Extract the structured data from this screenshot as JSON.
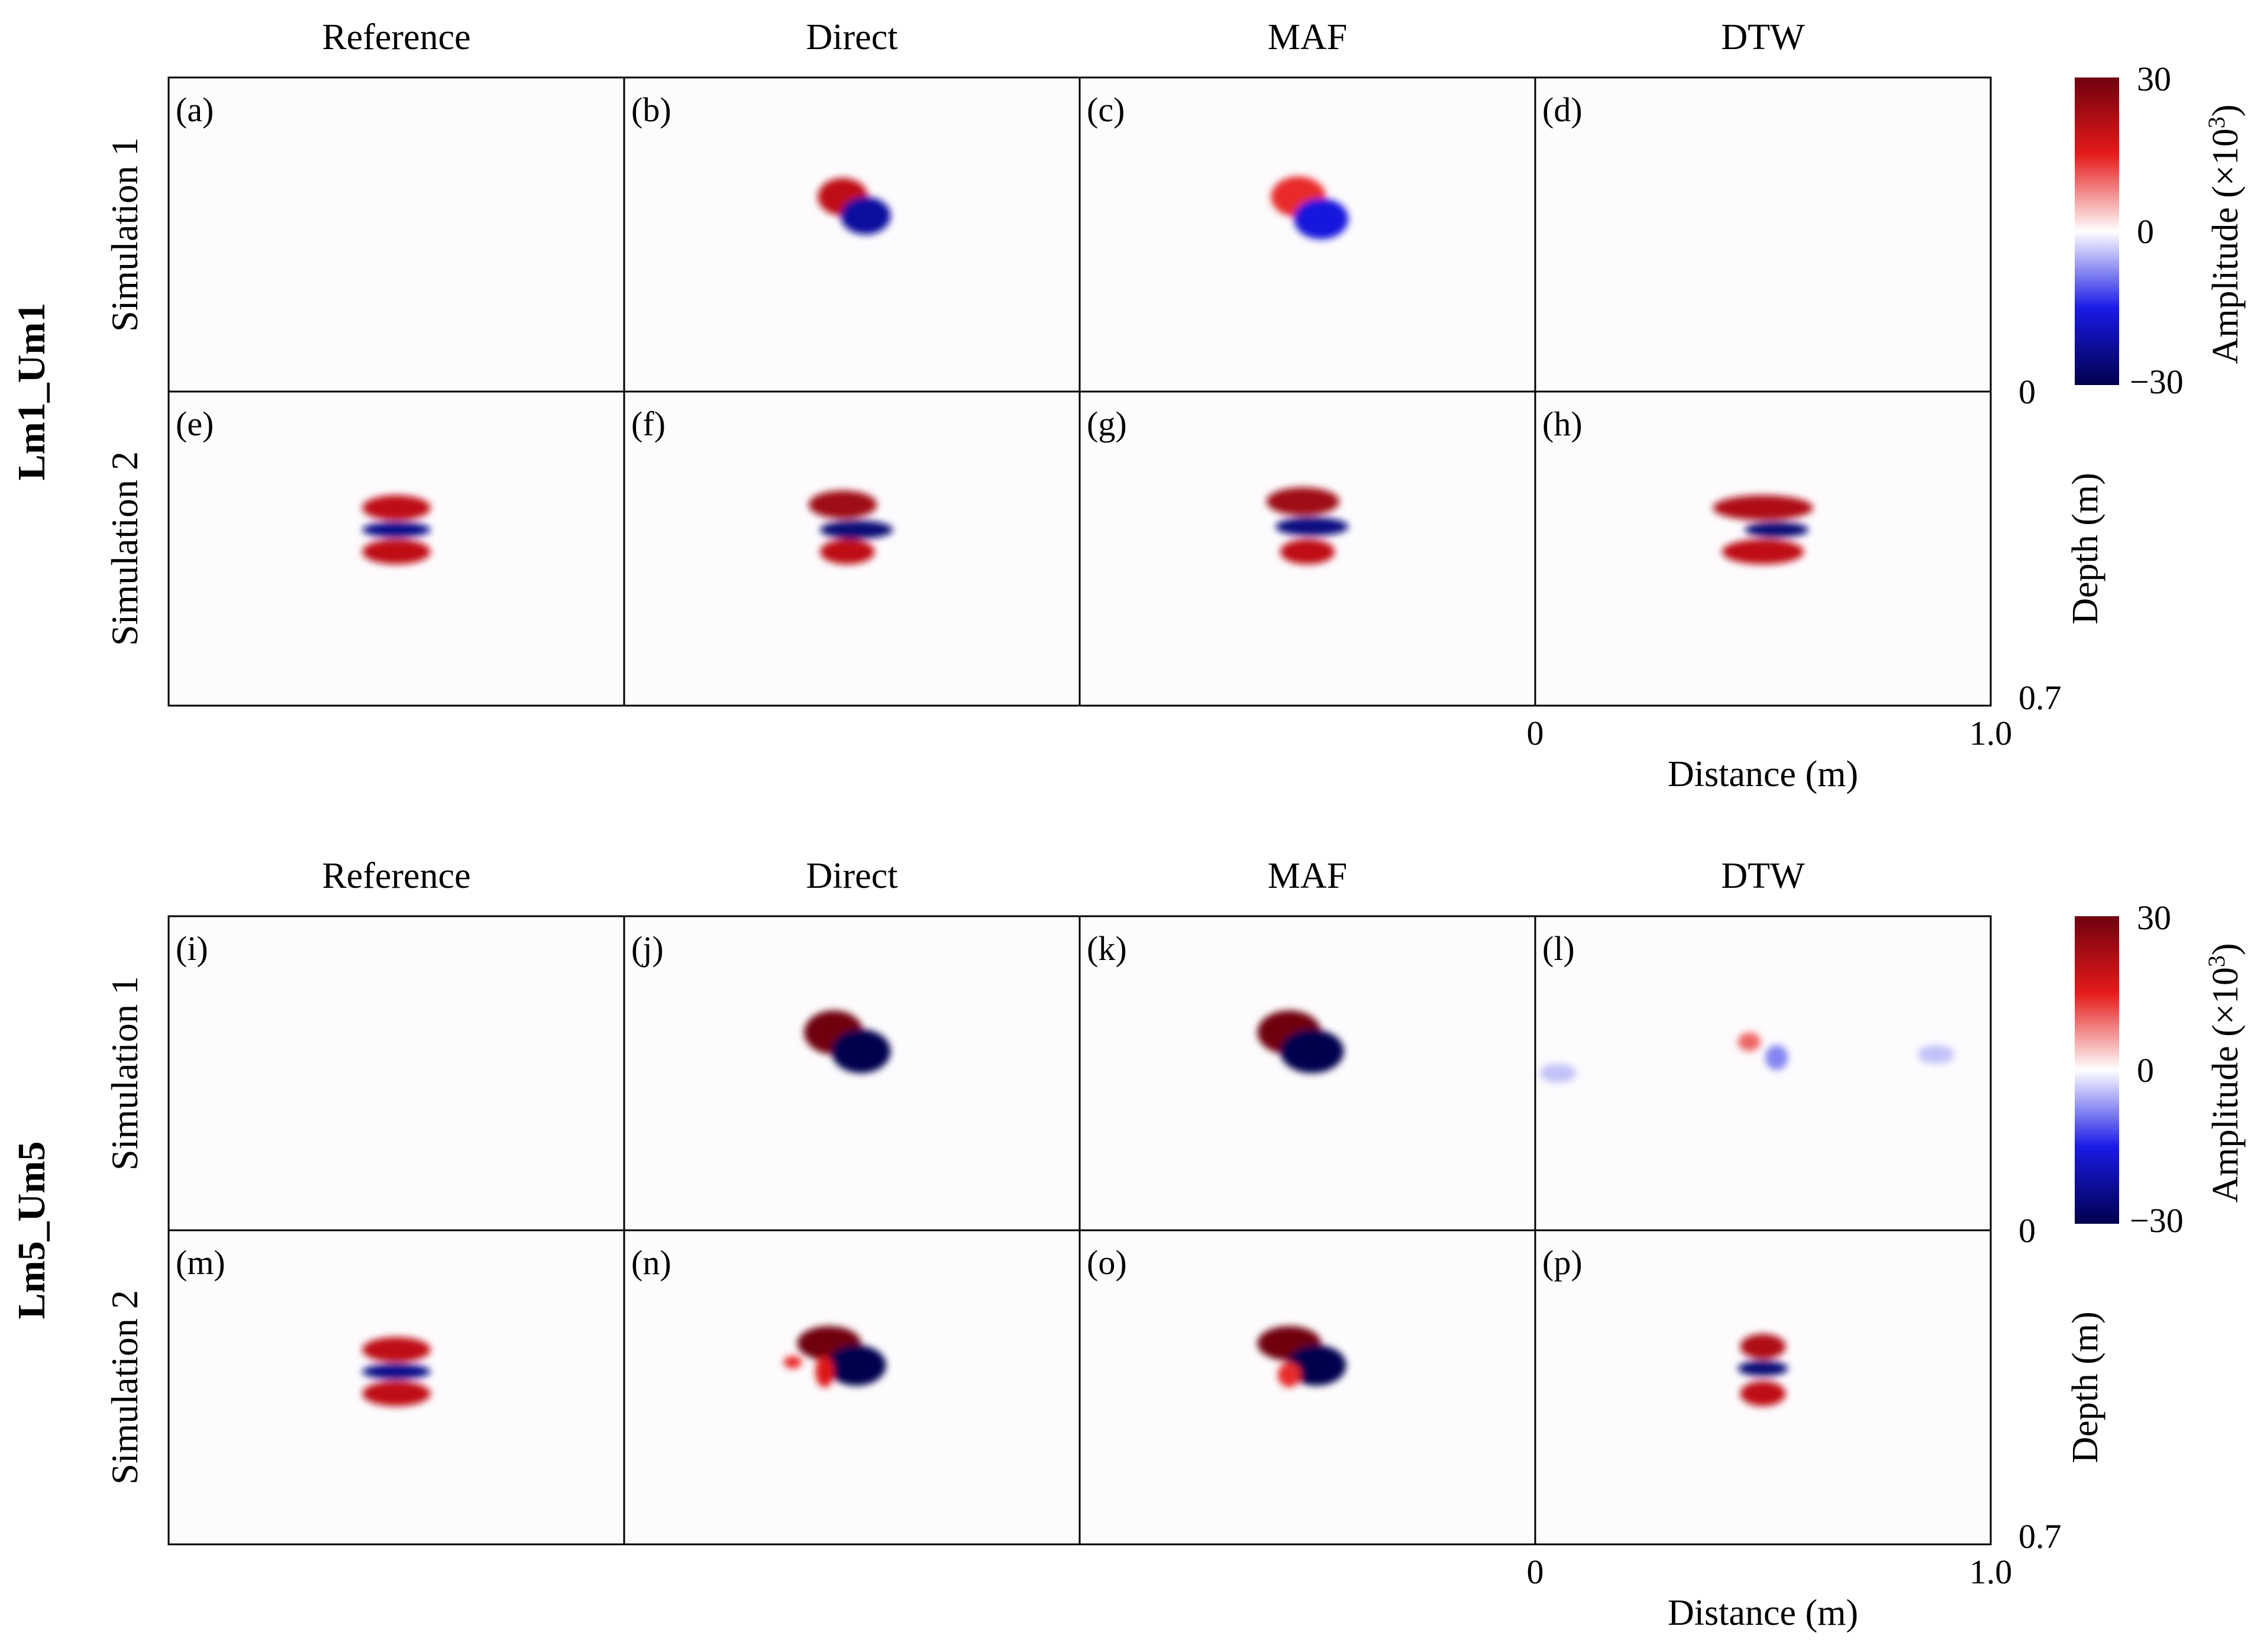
{
  "chart_data": {
    "type": "heatmap",
    "description_units": {
      "colorbar_range": [
        -30,
        30
      ],
      "colorbar_ticks": [
        "30",
        "0",
        "−30"
      ],
      "colorbar_label": "Amplitude (×10",
      "colorbar_label_sup": "3",
      "colorbar_label_end": ")",
      "colormap": [
        "#70000f",
        "#e61a1a",
        "#ffffff",
        "#1a1ae6",
        "#00004d"
      ]
    },
    "axes": {
      "xlabel": "Distance (m)",
      "x_ticks": [
        "0",
        "1.0"
      ],
      "xlim": [
        0,
        1.0
      ],
      "ylabel": "Depth (m)",
      "y_ticks": [
        "0",
        "0.7"
      ],
      "ylim": [
        0,
        0.7
      ]
    },
    "columns": [
      "Reference",
      "Direct",
      "MAF",
      "DTW"
    ],
    "row_labels": [
      "Simulation 1",
      "Simulation 2"
    ],
    "groups": [
      {
        "name": "Lm1_Um1",
        "panels": [
          {
            "label": "(a)",
            "blobs": []
          },
          {
            "label": "(b)",
            "blobs": [
              {
                "cx": 0.48,
                "cy": 0.38,
                "rx": 0.055,
                "ry": 0.06,
                "amp": 20
              },
              {
                "cx": 0.53,
                "cy": 0.44,
                "rx": 0.055,
                "ry": 0.06,
                "amp": -22
              }
            ]
          },
          {
            "label": "(c)",
            "blobs": [
              {
                "cx": 0.48,
                "cy": 0.38,
                "rx": 0.06,
                "ry": 0.065,
                "amp": 14
              },
              {
                "cx": 0.53,
                "cy": 0.45,
                "rx": 0.06,
                "ry": 0.065,
                "amp": -16
              }
            ]
          },
          {
            "label": "(d)",
            "blobs": []
          },
          {
            "label": "(e)",
            "blobs": [
              {
                "cx": 0.5,
                "cy": 0.37,
                "rx": 0.075,
                "ry": 0.04,
                "amp": 20
              },
              {
                "cx": 0.5,
                "cy": 0.44,
                "rx": 0.075,
                "ry": 0.025,
                "amp": -24
              },
              {
                "cx": 0.5,
                "cy": 0.51,
                "rx": 0.075,
                "ry": 0.04,
                "amp": 20
              }
            ]
          },
          {
            "label": "(f)",
            "blobs": [
              {
                "cx": 0.48,
                "cy": 0.36,
                "rx": 0.075,
                "ry": 0.045,
                "amp": 24
              },
              {
                "cx": 0.51,
                "cy": 0.44,
                "rx": 0.08,
                "ry": 0.03,
                "amp": -26
              },
              {
                "cx": 0.49,
                "cy": 0.51,
                "rx": 0.06,
                "ry": 0.04,
                "amp": 20
              }
            ]
          },
          {
            "label": "(g)",
            "blobs": [
              {
                "cx": 0.49,
                "cy": 0.35,
                "rx": 0.08,
                "ry": 0.045,
                "amp": 24
              },
              {
                "cx": 0.51,
                "cy": 0.43,
                "rx": 0.08,
                "ry": 0.03,
                "amp": -25
              },
              {
                "cx": 0.5,
                "cy": 0.51,
                "rx": 0.06,
                "ry": 0.04,
                "amp": 20
              }
            ]
          },
          {
            "label": "(h)",
            "blobs": [
              {
                "cx": 0.5,
                "cy": 0.37,
                "rx": 0.11,
                "ry": 0.04,
                "amp": 22
              },
              {
                "cx": 0.53,
                "cy": 0.44,
                "rx": 0.07,
                "ry": 0.025,
                "amp": -26
              },
              {
                "cx": 0.5,
                "cy": 0.51,
                "rx": 0.09,
                "ry": 0.04,
                "amp": 20
              }
            ]
          }
        ]
      },
      {
        "name": "Lm5_Um5",
        "panels": [
          {
            "label": "(i)",
            "blobs": []
          },
          {
            "label": "(j)",
            "blobs": [
              {
                "cx": 0.46,
                "cy": 0.37,
                "rx": 0.065,
                "ry": 0.07,
                "amp": 30
              },
              {
                "cx": 0.52,
                "cy": 0.43,
                "rx": 0.065,
                "ry": 0.07,
                "amp": -30
              }
            ]
          },
          {
            "label": "(k)",
            "blobs": [
              {
                "cx": 0.46,
                "cy": 0.37,
                "rx": 0.07,
                "ry": 0.07,
                "amp": 30
              },
              {
                "cx": 0.51,
                "cy": 0.43,
                "rx": 0.07,
                "ry": 0.07,
                "amp": -30
              }
            ]
          },
          {
            "label": "(l)",
            "blobs": [
              {
                "cx": 0.47,
                "cy": 0.4,
                "rx": 0.025,
                "ry": 0.03,
                "amp": 10
              },
              {
                "cx": 0.53,
                "cy": 0.45,
                "rx": 0.025,
                "ry": 0.04,
                "amp": -8
              },
              {
                "cx": 0.05,
                "cy": 0.5,
                "rx": 0.04,
                "ry": 0.03,
                "amp": -4
              },
              {
                "cx": 0.88,
                "cy": 0.44,
                "rx": 0.04,
                "ry": 0.03,
                "amp": -4
              }
            ]
          },
          {
            "label": "(m)",
            "blobs": [
              {
                "cx": 0.5,
                "cy": 0.38,
                "rx": 0.075,
                "ry": 0.04,
                "amp": 20
              },
              {
                "cx": 0.5,
                "cy": 0.45,
                "rx": 0.075,
                "ry": 0.025,
                "amp": -24
              },
              {
                "cx": 0.5,
                "cy": 0.52,
                "rx": 0.075,
                "ry": 0.04,
                "amp": 20
              }
            ]
          },
          {
            "label": "(n)",
            "blobs": [
              {
                "cx": 0.45,
                "cy": 0.36,
                "rx": 0.07,
                "ry": 0.055,
                "amp": 30
              },
              {
                "cx": 0.51,
                "cy": 0.43,
                "rx": 0.065,
                "ry": 0.065,
                "amp": -30
              },
              {
                "cx": 0.44,
                "cy": 0.45,
                "rx": 0.02,
                "ry": 0.05,
                "amp": 16
              },
              {
                "cx": 0.37,
                "cy": 0.42,
                "rx": 0.02,
                "ry": 0.02,
                "amp": 14
              }
            ]
          },
          {
            "label": "(o)",
            "blobs": [
              {
                "cx": 0.46,
                "cy": 0.36,
                "rx": 0.07,
                "ry": 0.055,
                "amp": 30
              },
              {
                "cx": 0.52,
                "cy": 0.43,
                "rx": 0.065,
                "ry": 0.065,
                "amp": -30
              },
              {
                "cx": 0.46,
                "cy": 0.46,
                "rx": 0.025,
                "ry": 0.04,
                "amp": 14
              }
            ]
          },
          {
            "label": "(p)",
            "blobs": [
              {
                "cx": 0.5,
                "cy": 0.37,
                "rx": 0.05,
                "ry": 0.04,
                "amp": 22
              },
              {
                "cx": 0.5,
                "cy": 0.44,
                "rx": 0.055,
                "ry": 0.025,
                "amp": -26
              },
              {
                "cx": 0.5,
                "cy": 0.52,
                "rx": 0.05,
                "ry": 0.04,
                "amp": 20
              }
            ]
          }
        ]
      }
    ]
  }
}
